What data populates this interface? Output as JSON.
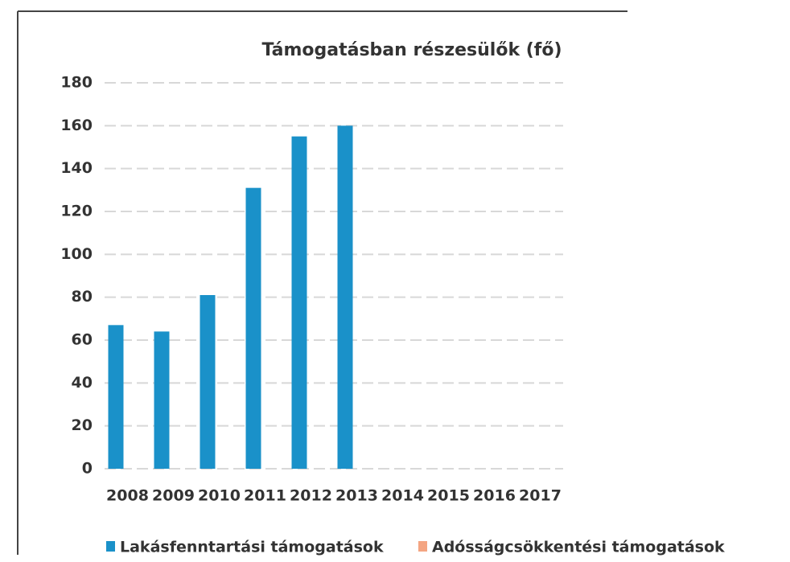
{
  "chart_data": {
    "type": "bar",
    "title": "Támogatásban részesülők (fő)",
    "categories": [
      "2008",
      "2009",
      "2010",
      "2011",
      "2012",
      "2013",
      "2014",
      "2015",
      "2016",
      "2017"
    ],
    "series": [
      {
        "name": "Lakásfenntartási támogatások",
        "color": "#1a91c9",
        "values": [
          67,
          64,
          81,
          131,
          155,
          160,
          null,
          null,
          null,
          null
        ]
      },
      {
        "name": "Adósságcsökkentési támogatások",
        "color": "#f4a582",
        "values": [
          null,
          null,
          null,
          null,
          null,
          null,
          null,
          null,
          null,
          null
        ]
      }
    ],
    "ylim": [
      0,
      180
    ],
    "yticks": [
      0,
      20,
      40,
      60,
      80,
      100,
      120,
      140,
      160,
      180
    ],
    "grid": true,
    "legend": "bottom"
  }
}
